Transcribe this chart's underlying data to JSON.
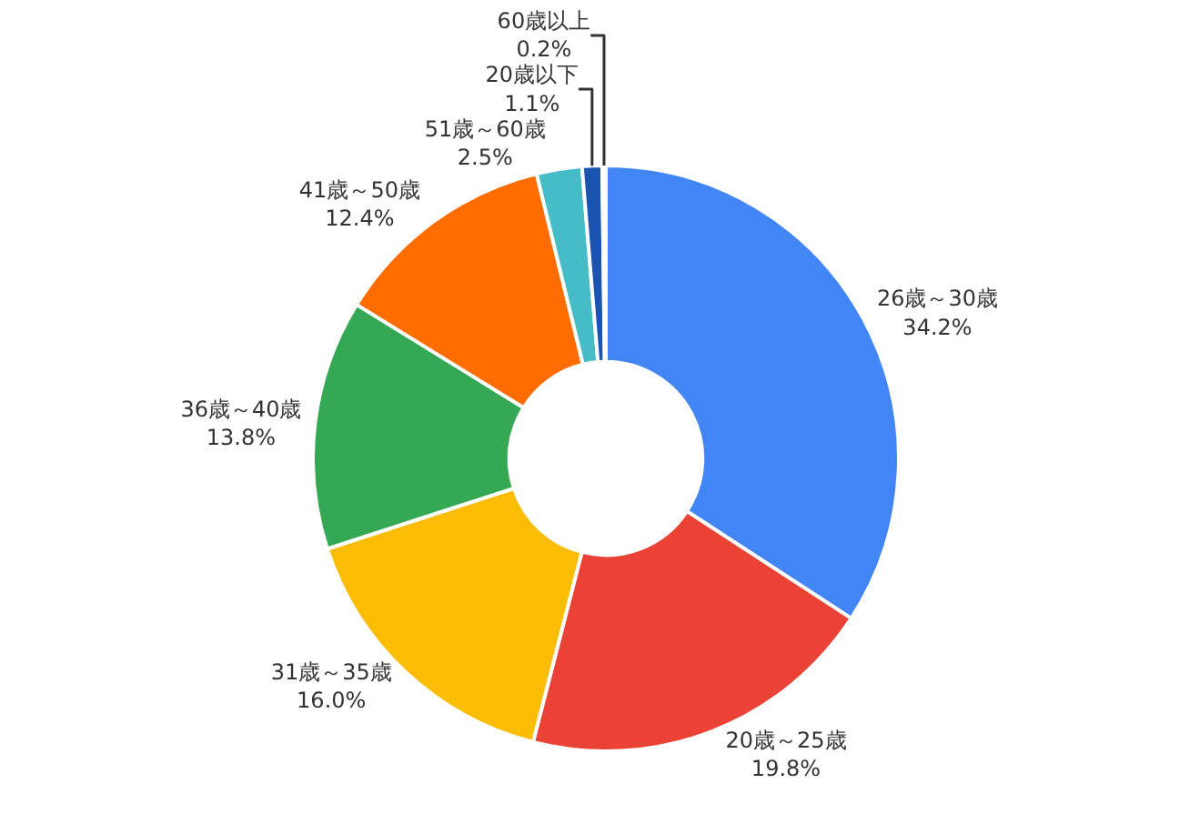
{
  "chart_data": {
    "type": "donut",
    "categories": [
      "26歳～30歳",
      "20歳～25歳",
      "31歳～35歳",
      "36歳～40歳",
      "41歳～50歳",
      "51歳～60歳",
      "20歳以下",
      "60歳以上"
    ],
    "values": [
      34.2,
      19.8,
      16.0,
      13.8,
      12.4,
      2.5,
      1.1,
      0.2
    ],
    "value_labels": [
      "34.2%",
      "19.8%",
      "16.0%",
      "13.8%",
      "12.4%",
      "2.5%",
      "1.1%",
      "0.2%"
    ],
    "colors": [
      "#4285f4",
      "#ea4335",
      "#fbbc04",
      "#34a853",
      "#ff6d01",
      "#46bdc6",
      "#1a53b0",
      "#3949ab"
    ],
    "legend": false
  }
}
